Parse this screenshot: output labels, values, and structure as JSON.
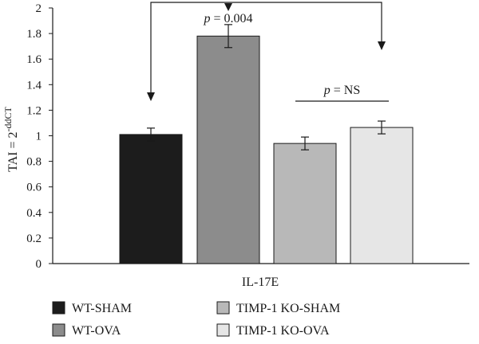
{
  "chart_data": {
    "type": "bar",
    "title": "",
    "xlabel": "IL-17E",
    "ylabel": {
      "base": "TAI = 2",
      "superscript": "-ddCT"
    },
    "ylim": [
      0,
      2
    ],
    "yticks": [
      "0",
      "0.2",
      "0.4",
      "0.6",
      "0.8",
      "1",
      "1.2",
      "1.4",
      "1.6",
      "1.8",
      "2"
    ],
    "grid": false,
    "legend_position": "bottom",
    "series": [
      {
        "name": "WT-SHAM",
        "value": 1.01,
        "error": 0.05,
        "color": "#1c1c1c"
      },
      {
        "name": "WT-OVA",
        "value": 1.78,
        "error": 0.09,
        "color": "#8c8c8c"
      },
      {
        "name": "TIMP-1 KO-SHAM",
        "value": 0.94,
        "error": 0.05,
        "color": "#b8b8b8"
      },
      {
        "name": "TIMP-1 KO-OVA",
        "value": 1.065,
        "error": 0.05,
        "color": "#e6e6e6"
      }
    ],
    "annotations": [
      {
        "p_label": "p",
        "text": " = 0.004",
        "between": [
          "WT-SHAM",
          "TIMP-1 KO-OVA"
        ],
        "marker": "WT-OVA"
      },
      {
        "p_label": "p",
        "text": " = NS",
        "between": [
          "TIMP-1 KO-SHAM",
          "TIMP-1 KO-OVA"
        ]
      }
    ]
  }
}
